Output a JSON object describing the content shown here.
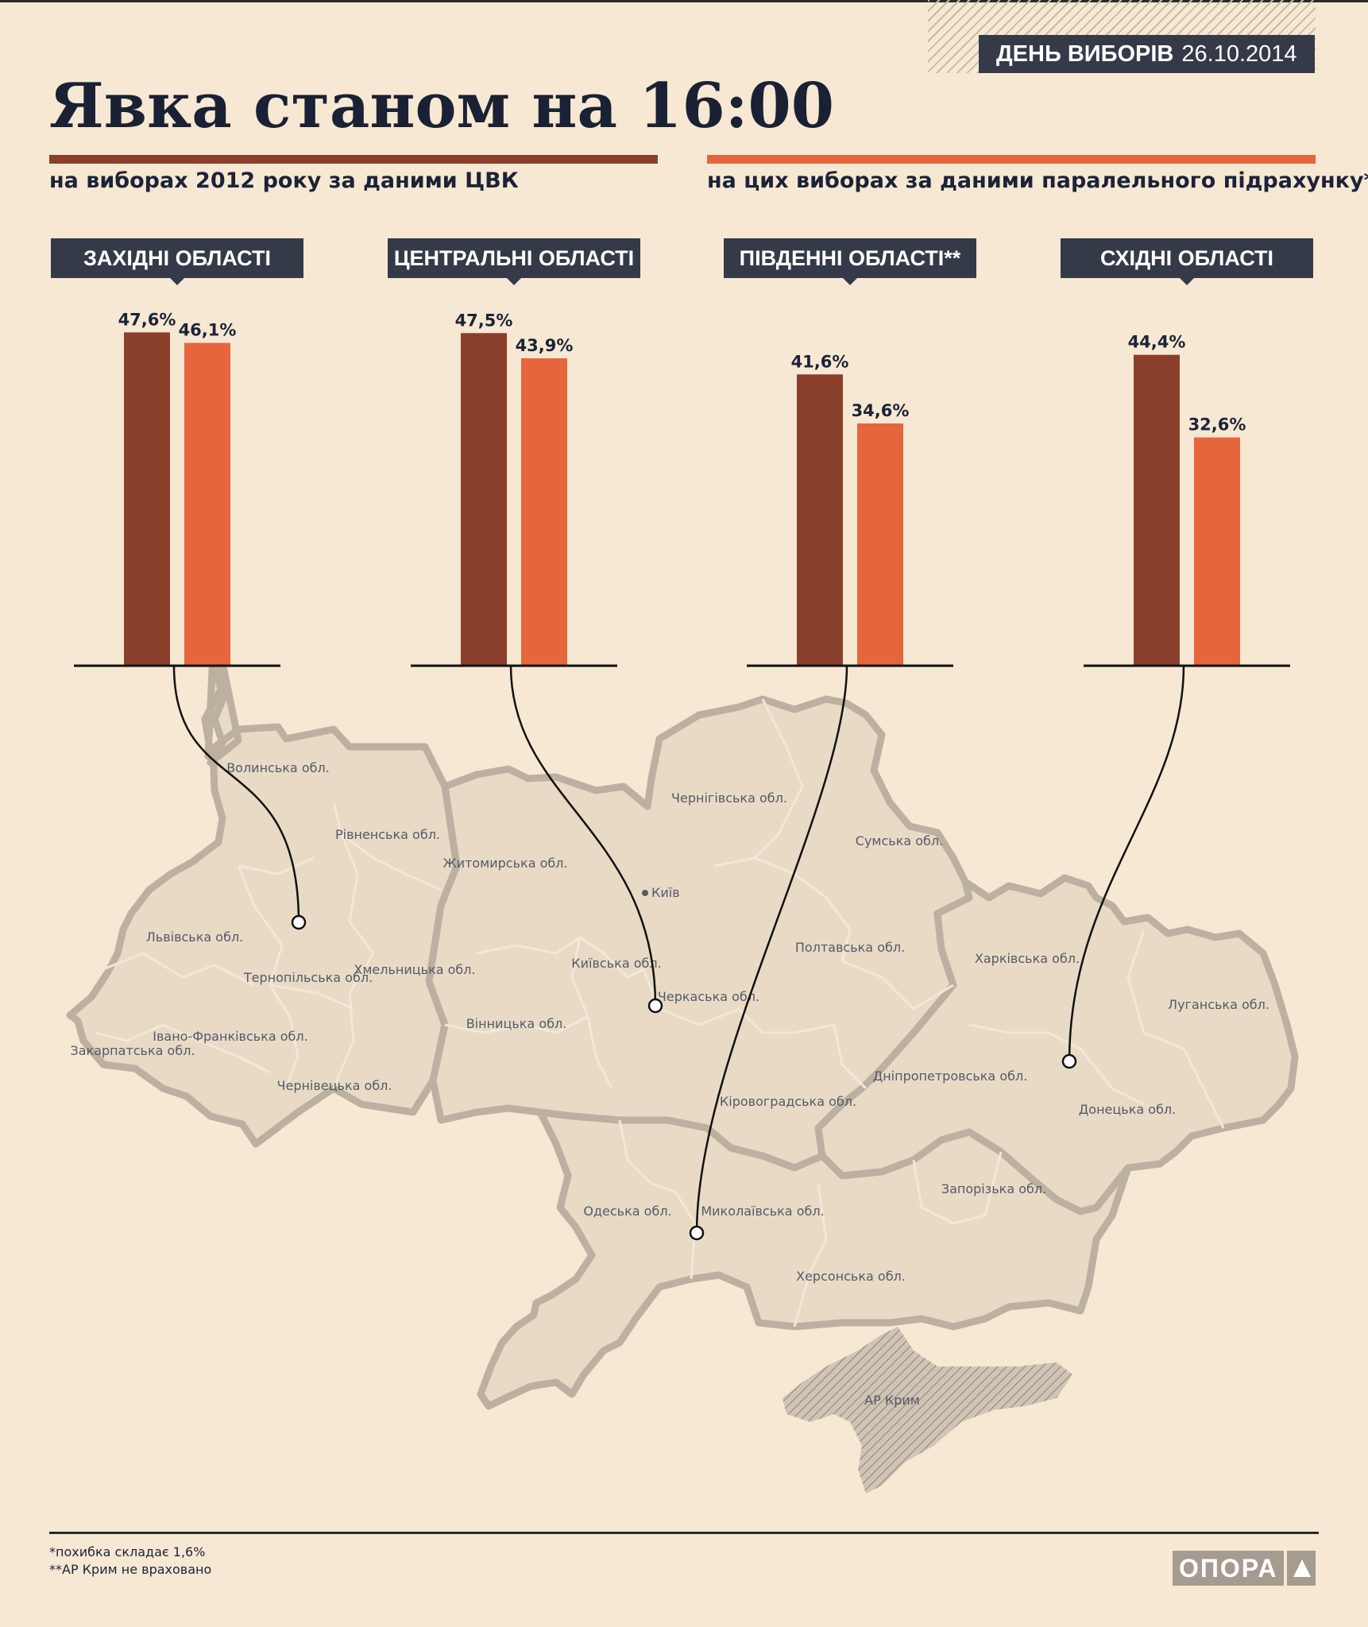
{
  "header": {
    "date_label": "ДЕНЬ ВИБОРІВ",
    "date_value": "26.10.2014",
    "title": "Явка станом на 16:00"
  },
  "legend": {
    "y2012": "на виборах 2012 року за даними ЦВК",
    "current": "на цих виборах за даними паралельного підрахунку*"
  },
  "colors": {
    "y2012": "#8a3f2b",
    "current": "#e5653d",
    "label_bg": "#353a48",
    "map_fill": "#e9dac6",
    "map_stroke": "#bcb0a1"
  },
  "regions": [
    {
      "label": "ЗАХІДНІ ОБЛАСТІ",
      "y2012_text": "47,6%",
      "current_text": "46,1%"
    },
    {
      "label": "ЦЕНТРАЛЬНІ ОБЛАСТІ",
      "y2012_text": "47,5%",
      "current_text": "43,9%"
    },
    {
      "label": "ПІВДЕННІ ОБЛАСТІ**",
      "y2012_text": "41,6%",
      "current_text": "34,6%"
    },
    {
      "label": "СХІДНІ ОБЛАСТІ",
      "y2012_text": "44,4%",
      "current_text": "32,6%"
    }
  ],
  "chart_data": {
    "type": "bar",
    "title": "Явка станом на 16:00",
    "categories": [
      "ЗАХІДНІ ОБЛАСТІ",
      "ЦЕНТРАЛЬНІ ОБЛАСТІ",
      "ПІВДЕННІ ОБЛАСТІ**",
      "СХІДНІ ОБЛАСТІ"
    ],
    "series": [
      {
        "name": "на виборах 2012 року за даними ЦВК",
        "values": [
          47.6,
          47.5,
          41.6,
          44.4
        ]
      },
      {
        "name": "на цих виборах за даними паралельного підрахунку*",
        "values": [
          46.1,
          43.9,
          34.6,
          32.6
        ]
      }
    ],
    "ylim": [
      0,
      50
    ],
    "grid": false,
    "legend": "top"
  },
  "map_labels": [
    "Волинська обл.",
    "Рівненська обл.",
    "Житомирська обл.",
    "Чернігівська обл.",
    "Сумська обл.",
    "Київ",
    "Львівська обл.",
    "Тернопільська обл.",
    "Хмельницька обл.",
    "Київська обл.",
    "Черкаська обл.",
    "Полтавська обл.",
    "Харківська обл.",
    "Луганська обл.",
    "Вінницька обл.",
    "Івано-Франківська обл.",
    "Закарпатська обл.",
    "Чернівецька обл.",
    "Дніпропетровська обл.",
    "Кіровоградська обл.",
    "Донецька обл.",
    "Одеська обл.",
    "Миколаївська обл.",
    "Запорізька обл.",
    "Херсонська обл.",
    "АР Крим"
  ],
  "footnotes": {
    "note1": "*похибка складає 1,6%",
    "note2": "**АР Крим не враховано"
  },
  "logo": {
    "text": "ОПОРА"
  }
}
